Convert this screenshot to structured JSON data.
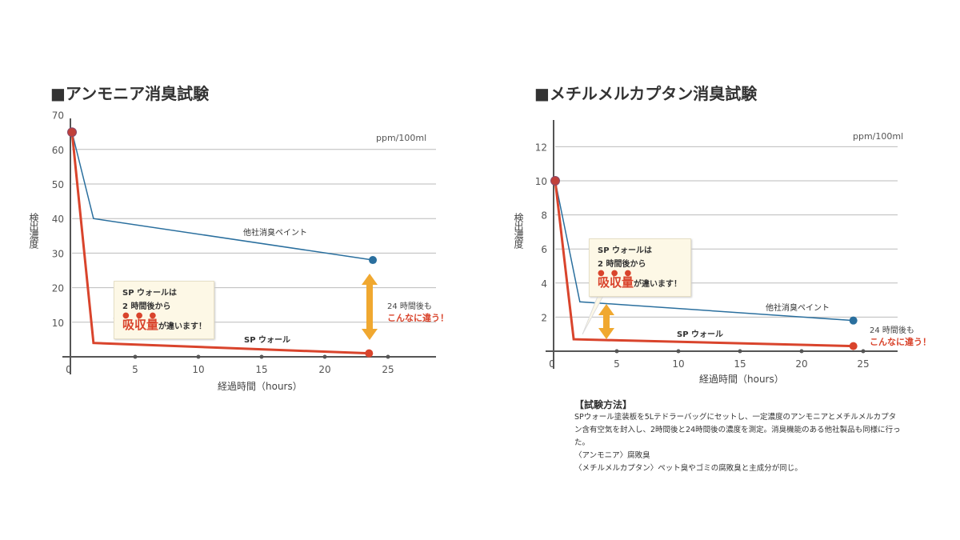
{
  "chart_data": [
    {
      "type": "line",
      "title": "■アンモニア消臭試験",
      "unit": "ppm/100ml",
      "ylabel": "検出濃度",
      "xlabel": "経過時間（hours）",
      "ylim": [
        0,
        70
      ],
      "yticks": [
        10,
        20,
        30,
        40,
        50,
        60,
        70
      ],
      "xlim": [
        0,
        28
      ],
      "xticks": [
        0,
        5,
        10,
        15,
        20,
        25
      ],
      "grid": true,
      "series": [
        {
          "name": "他社消臭ペイント",
          "color": "#2a6f9e",
          "x": [
            0,
            1.7,
            23.8
          ],
          "y": [
            65,
            40,
            28
          ]
        },
        {
          "name": "SP ウォール",
          "color": "#d9442c",
          "x": [
            0,
            1.7,
            23.5
          ],
          "y": [
            65,
            4,
            1
          ]
        }
      ],
      "callout": {
        "line1": "SP ウォールは",
        "line2": "2 時間後から",
        "dots": "●●●",
        "highlight": "吸収量",
        "rest": "が違います！"
      },
      "note": {
        "line1": "24 時間後も",
        "line2": "こんなに違う！"
      }
    },
    {
      "type": "line",
      "title": "■メチルメルカプタン消臭試験",
      "unit": "ppm/100ml",
      "ylabel": "検出濃度",
      "xlabel": "経過時間（hours）",
      "ylim": [
        0,
        14
      ],
      "yticks": [
        2,
        4,
        6,
        8,
        10,
        12
      ],
      "xlim": [
        0,
        28
      ],
      "xticks": [
        0,
        5,
        10,
        15,
        20,
        25
      ],
      "grid": true,
      "series": [
        {
          "name": "他社消臭ペイント",
          "color": "#2a6f9e",
          "x": [
            0,
            2,
            24.2
          ],
          "y": [
            10,
            2.9,
            1.8
          ]
        },
        {
          "name": "SP ウォール",
          "color": "#d9442c",
          "x": [
            0,
            1.5,
            24.2
          ],
          "y": [
            10,
            0.7,
            0.3
          ]
        }
      ],
      "callout": {
        "line1": "SP ウォールは",
        "line2": "2 時間後から",
        "dots": "●●●",
        "highlight": "吸収量",
        "rest": "が違います！"
      },
      "note": {
        "line1": "24 時間後も",
        "line2": "こんなに違う！"
      }
    }
  ],
  "method": {
    "title": "【試験方法】",
    "lines": [
      "SPウォール塗装板を5Lテドラーバッグにセットし、一定濃度のアンモニアとメチルメルカプタン含有空気を封入し、2時間後と24時間後の濃度を測定。消臭機能のある他社製品も同様に行った。",
      "〈アンモニア〉腐敗臭",
      "〈メチルメルカプタン〉ペット臭やゴミの腐敗臭と主成分が同じ。"
    ]
  },
  "colors": {
    "red": "#d9442c",
    "blue": "#2a6f9e",
    "arrow": "#f0a830",
    "axis": "#555",
    "grid": "#bbb"
  }
}
